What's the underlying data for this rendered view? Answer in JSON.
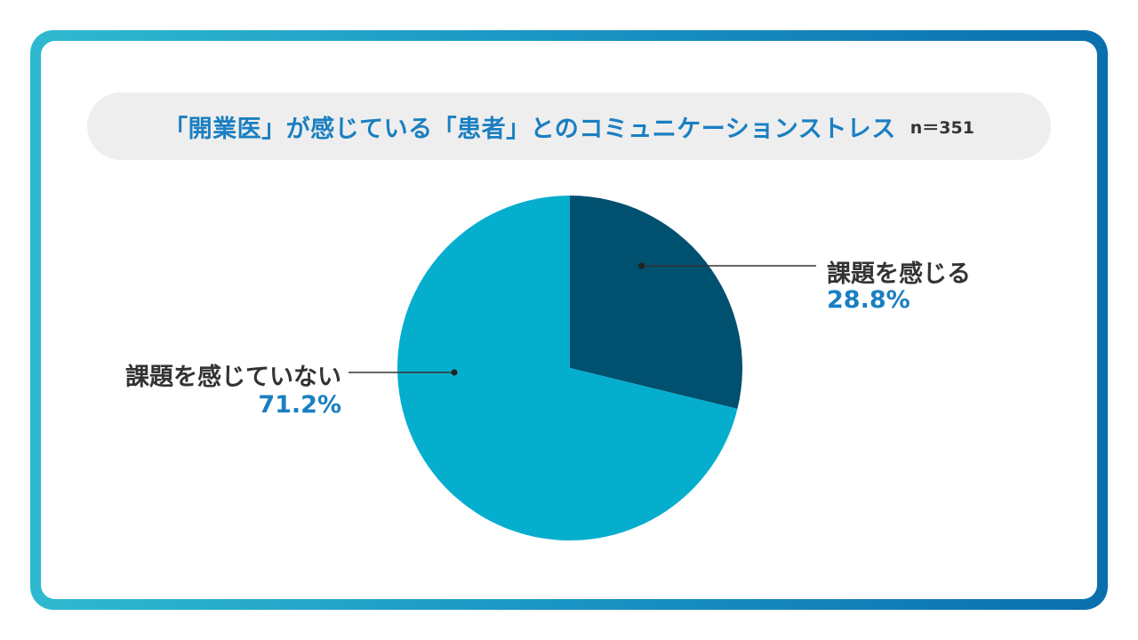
{
  "chart_data": {
    "type": "pie",
    "title": "「開業医」が感じている「患者」とのコミュニケーションストレス",
    "subtitle": "n＝351",
    "slices": [
      {
        "label": "課題を感じる",
        "value": 28.8,
        "value_label": "28.8%",
        "color": "#00506f"
      },
      {
        "label": "課題を感じていない",
        "value": 71.2,
        "value_label": "71.2%",
        "color": "#06aecd"
      }
    ],
    "start_angle_deg": 0,
    "direction": "clockwise"
  }
}
